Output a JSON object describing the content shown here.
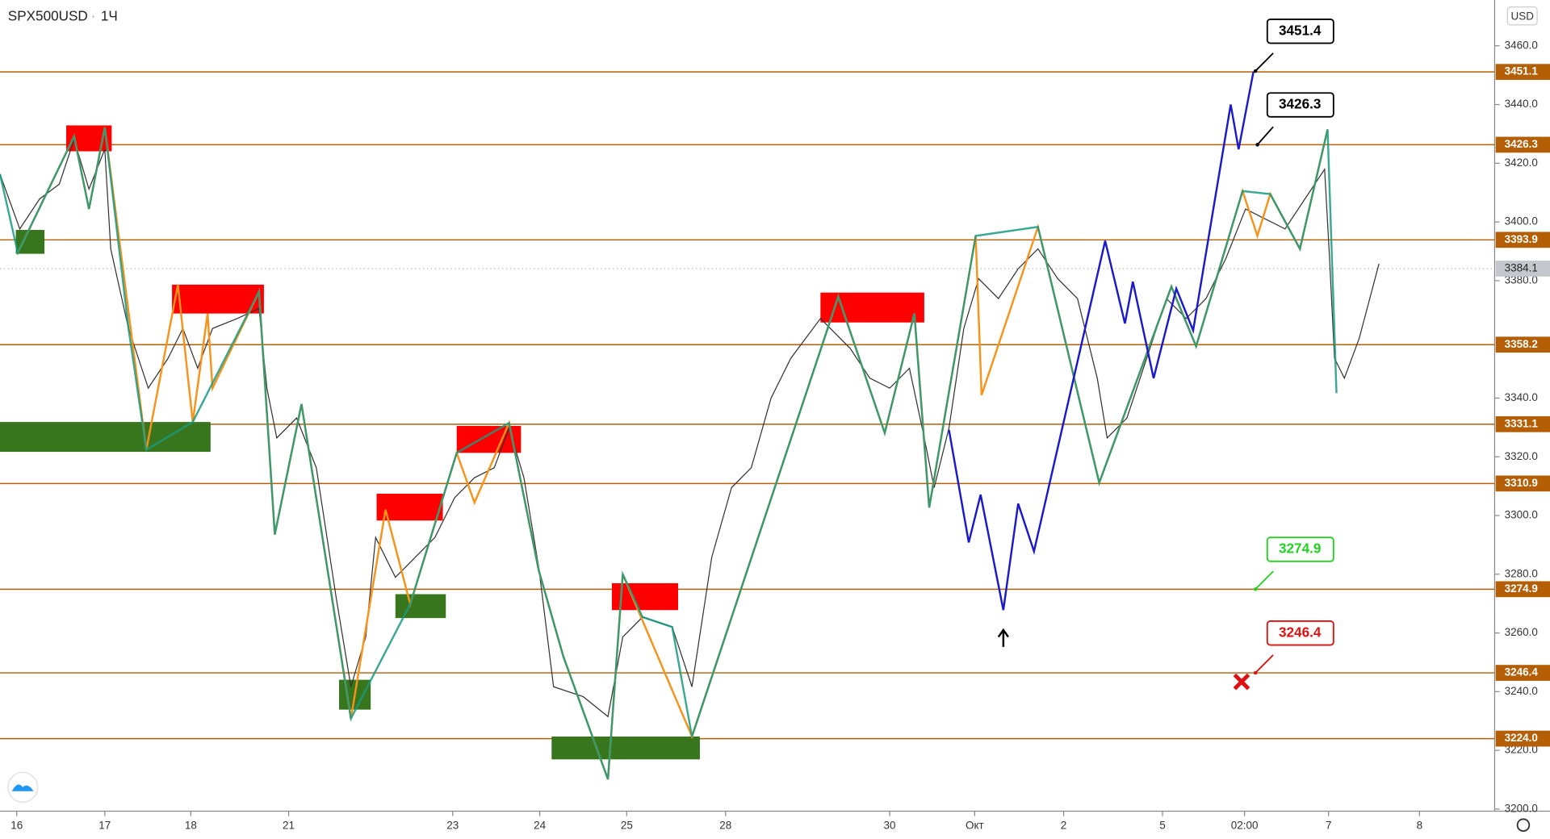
{
  "header": {
    "symbol": "SPX500USD",
    "interval": "1Ч",
    "currency": "USD"
  },
  "price_axis": {
    "ylim": [
      3199.3,
      3475.6
    ],
    "yticks": [
      {
        "value": 3200,
        "label": "3200.0"
      },
      {
        "value": 3220,
        "label": "3220.0"
      },
      {
        "value": 3240,
        "label": "3240.0"
      },
      {
        "value": 3260,
        "label": "3260.0"
      },
      {
        "value": 3280,
        "label": "3280.0"
      },
      {
        "value": 3300,
        "label": "3300.0"
      },
      {
        "value": 3320,
        "label": "3320.0"
      },
      {
        "value": 3340,
        "label": "3340.0"
      },
      {
        "value": 3380,
        "label": "3380.0"
      },
      {
        "value": 3400,
        "label": "3400.0"
      },
      {
        "value": 3420,
        "label": "3420.0"
      },
      {
        "value": 3440,
        "label": "3440.0"
      },
      {
        "value": 3460,
        "label": "3460.0"
      }
    ]
  },
  "levels": [
    3451.1,
    3426.3,
    3393.9,
    3358.2,
    3331.1,
    3310.9,
    3274.9,
    3246.4,
    {
      "value": 3224,
      "label": "3224.0"
    }
  ],
  "current_price": 3384.1,
  "time_axis": [
    "16",
    "17",
    "18",
    "21",
    "23",
    "24",
    "25",
    "28",
    "30",
    "Окт",
    "2",
    "5",
    "02:00",
    "7",
    "8"
  ],
  "callouts": [
    {
      "label": "3451.4",
      "value": 3451.4
    },
    {
      "label": "3426.3",
      "value": 3426.3
    },
    {
      "label": "3274.9",
      "value": 3274.9
    },
    {
      "label": "3246.4",
      "value": 3246.4
    }
  ]
}
